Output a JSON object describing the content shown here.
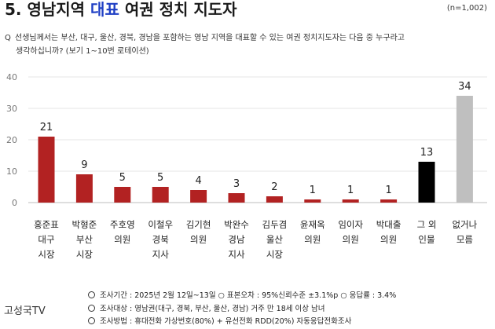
{
  "header": {
    "title_prefix": "5. 영남지역 ",
    "title_highlight": "대표",
    "title_suffix": " 여권 정치 지도자",
    "sample": "(n=1,002)",
    "question_mark": "Q",
    "question_line1": "선생님께서는 부산, 대구, 울산, 경북, 경남을 포함하는 영남 지역을 대표할 수 있는 여권 정치지도자는 다음 중 누구라고",
    "question_line2": "생각하십니까? (보기 1~10번 로테이션)"
  },
  "chart_data": {
    "type": "bar",
    "categories": [
      [
        "홍준표",
        "대구",
        "시장"
      ],
      [
        "박형준",
        "부산",
        "시장"
      ],
      [
        "주호영",
        "의원"
      ],
      [
        "이철우",
        "경북",
        "지사"
      ],
      [
        "김기현",
        "의원"
      ],
      [
        "박완수",
        "경남",
        "지사"
      ],
      [
        "김두겸",
        "울산",
        "시장"
      ],
      [
        "윤재옥",
        "의원"
      ],
      [
        "임이자",
        "의원"
      ],
      [
        "박대출",
        "의원"
      ],
      [
        "그 외",
        "인물"
      ],
      [
        "없거나",
        "모름"
      ]
    ],
    "values": [
      21,
      9,
      5,
      5,
      4,
      3,
      2,
      1,
      1,
      1,
      13,
      34
    ],
    "ylim": [
      0,
      40
    ],
    "yticks": [
      0,
      10,
      20,
      30,
      40
    ],
    "grid": true,
    "colors": [
      "#b22222",
      "#b22222",
      "#b22222",
      "#b22222",
      "#b22222",
      "#b22222",
      "#b22222",
      "#b22222",
      "#b22222",
      "#b22222",
      "#000000",
      "#bfbfbf"
    ]
  },
  "footer": {
    "source": "고성국TV",
    "methods": [
      "조사기간 : 2025년 2월 12일~13일  ○  표본오차 : 95%신뢰수준 ±3.1%p  ○  응답률 : 3.4%",
      "조사대상 : 영남권(대구, 경북, 부산, 울산, 경남) 거주 만 18세 이상 남녀",
      "조사방법 : 휴대전화 가상번호(80%) + 유선전화 RDD(20%) 자동응답전화조사"
    ]
  }
}
